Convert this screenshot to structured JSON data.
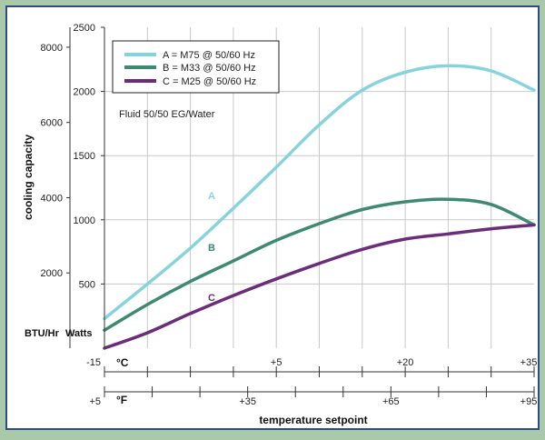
{
  "chart_data": {
    "type": "line",
    "title": "",
    "ylabel": "cooling capacity",
    "xlabel": "temperature setpoint",
    "note": "Fluid 50/50 EG/Water",
    "y_left_unit": "BTU/Hr",
    "y_right_unit": "Watts",
    "x_primary_unit": "°C",
    "x_secondary_unit": "°F",
    "x_primary_ticks": [
      "-15",
      "+5",
      "+20",
      "+35"
    ],
    "x_secondary_ticks": [
      "+5",
      "+35",
      "+65",
      "+95"
    ],
    "y_watts_ticks": [
      "500",
      "1000",
      "1500",
      "2000",
      "2500"
    ],
    "y_btu_ticks": [
      "2000",
      "4000",
      "6000",
      "8000"
    ],
    "xlim_c": [
      -15,
      35
    ],
    "ylim_watts": [
      0,
      2500
    ],
    "legend_position": "top-left",
    "series": [
      {
        "name": "A = M75 @ 50/60 Hz",
        "label": "A",
        "color": "#86d3de",
        "x": [
          -15,
          -10,
          -5,
          0,
          5,
          10,
          15,
          20,
          25,
          30,
          35
        ],
        "y": [
          230,
          500,
          780,
          1090,
          1410,
          1740,
          2010,
          2150,
          2200,
          2160,
          2010
        ]
      },
      {
        "name": "B = M33 @ 50/60 Hz",
        "label": "B",
        "color": "#3e8a6e",
        "x": [
          -15,
          -10,
          -5,
          0,
          5,
          10,
          15,
          20,
          25,
          30,
          35
        ],
        "y": [
          140,
          340,
          520,
          680,
          840,
          970,
          1080,
          1140,
          1160,
          1120,
          960
        ]
      },
      {
        "name": "C = M25 @ 50/60 Hz",
        "label": "C",
        "color": "#6b2d7a",
        "x": [
          -15,
          -10,
          -5,
          0,
          5,
          10,
          15,
          20,
          25,
          30,
          35
        ],
        "y": [
          0,
          120,
          270,
          410,
          540,
          660,
          770,
          850,
          890,
          930,
          960
        ]
      }
    ]
  }
}
